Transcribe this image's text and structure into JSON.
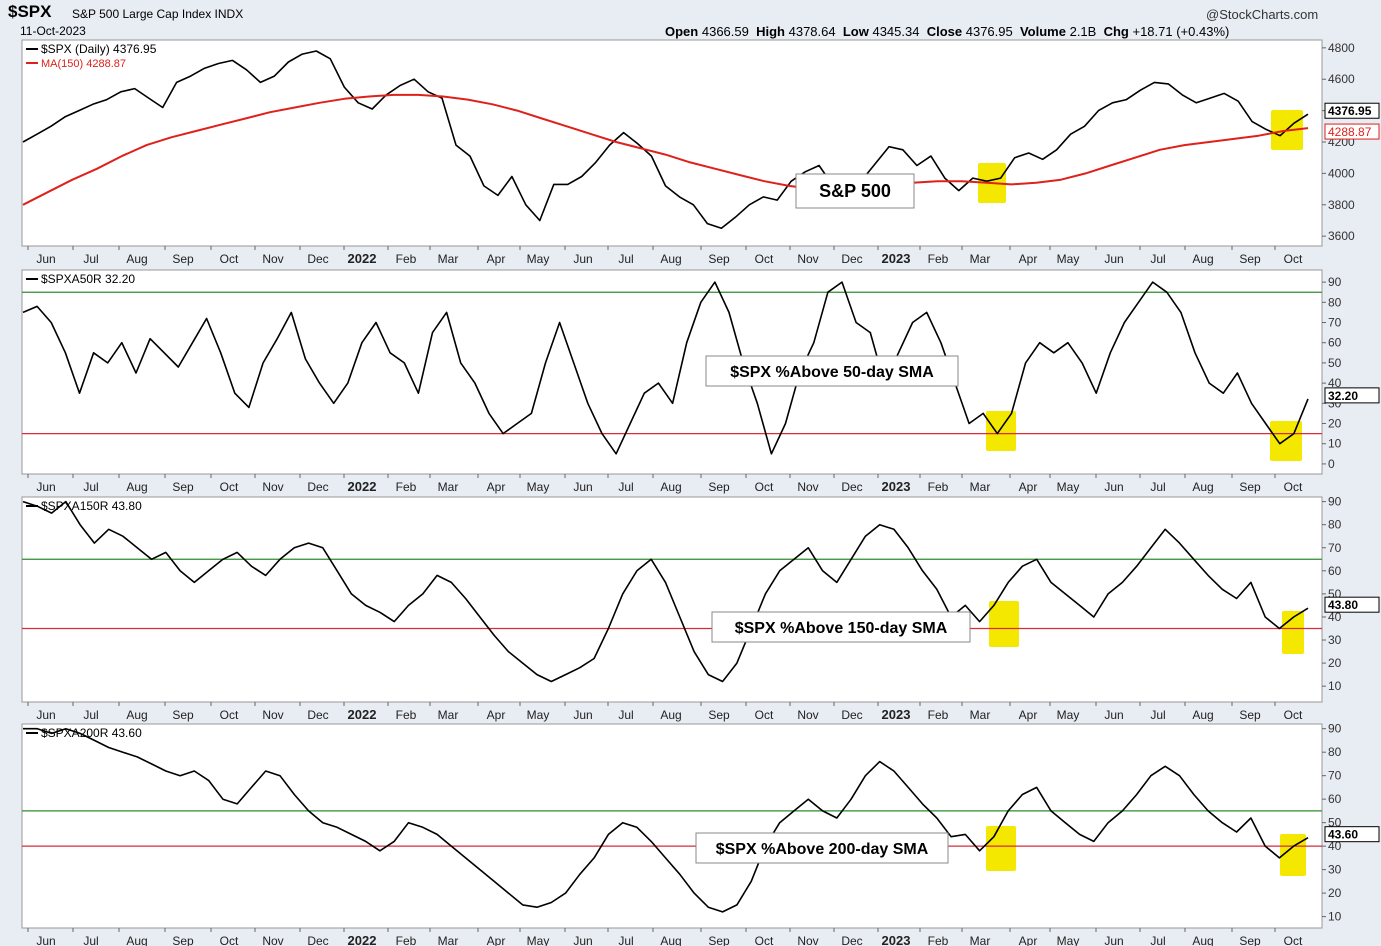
{
  "header": {
    "ticker": "$SPX",
    "name": "S&P 500 Large Cap Index INDX",
    "date": "11-Oct-2023",
    "brand": "@StockCharts.com",
    "open_label": "Open",
    "open": "4366.59",
    "high_label": "High",
    "high": "4378.64",
    "low_label": "Low",
    "low": "4345.34",
    "close_label": "Close",
    "close": "4376.95",
    "volume_label": "Volume",
    "volume": "2.1B",
    "chg_label": "Chg",
    "chg": "+18.71 (+0.43%)"
  },
  "colors": {
    "background": "#e8ecf3",
    "panel": "#ffffff",
    "price_line": "#000000",
    "ma_line": "#e0201b",
    "upper_line": "#2e8b2e",
    "lower_line": "#d92b3a",
    "highlight": "#f5e800"
  },
  "chart_data": [
    {
      "type": "line",
      "legend": [
        "$SPX (Daily) 4376.95",
        "MA(150) 4288.87"
      ],
      "annotation": "S&P 500",
      "x_ticks": [
        "Jun",
        "Jul",
        "Aug",
        "Sep",
        "Oct",
        "Nov",
        "Dec",
        "2022",
        "Feb",
        "Mar",
        "Apr",
        "May",
        "Jun",
        "Jul",
        "Aug",
        "Sep",
        "Oct",
        "Nov",
        "Dec",
        "2023",
        "Feb",
        "Mar",
        "Apr",
        "May",
        "Jun",
        "Jul",
        "Aug",
        "Sep",
        "Oct"
      ],
      "y_ticks": [
        3600,
        3800,
        4000,
        4200,
        4400,
        4600,
        4800
      ],
      "ylim": [
        3550,
        4850
      ],
      "last_value_tags": [
        "4376.95",
        "4288.87"
      ],
      "series": [
        {
          "name": "$SPX (Daily)",
          "values": [
            4200,
            4250,
            4300,
            4360,
            4400,
            4440,
            4470,
            4520,
            4540,
            4480,
            4420,
            4580,
            4620,
            4670,
            4700,
            4720,
            4660,
            4580,
            4620,
            4710,
            4760,
            4780,
            4730,
            4550,
            4450,
            4410,
            4500,
            4560,
            4600,
            4520,
            4480,
            4180,
            4110,
            3920,
            3860,
            3980,
            3800,
            3700,
            3930,
            3930,
            3980,
            4070,
            4180,
            4260,
            4190,
            4110,
            3920,
            3850,
            3800,
            3680,
            3650,
            3720,
            3800,
            3850,
            3830,
            3950,
            4010,
            4050,
            3920,
            3850,
            3950,
            4060,
            4170,
            4150,
            4050,
            4110,
            3970,
            3890,
            3970,
            3950,
            3970,
            4100,
            4130,
            4090,
            4150,
            4250,
            4300,
            4400,
            4450,
            4470,
            4530,
            4580,
            4570,
            4500,
            4450,
            4480,
            4510,
            4460,
            4330,
            4280,
            4240,
            4320,
            4376.95
          ]
        },
        {
          "name": "MA(150)",
          "values": [
            3800,
            3880,
            3960,
            4030,
            4110,
            4180,
            4230,
            4270,
            4310,
            4350,
            4390,
            4420,
            4450,
            4475,
            4490,
            4500,
            4500,
            4490,
            4470,
            4440,
            4400,
            4350,
            4300,
            4250,
            4200,
            4160,
            4120,
            4070,
            4030,
            3990,
            3950,
            3920,
            3900,
            3900,
            3910,
            3930,
            3940,
            3950,
            3950,
            3940,
            3930,
            3940,
            3960,
            4000,
            4050,
            4100,
            4150,
            4180,
            4200,
            4220,
            4240,
            4270,
            4288.87
          ]
        }
      ]
    },
    {
      "type": "line",
      "legend": [
        "$SPXA50R 32.20"
      ],
      "annotation": "$SPX %Above 50-day SMA",
      "x_ticks": [
        "Jun",
        "Jul",
        "Aug",
        "Sep",
        "Oct",
        "Nov",
        "Dec",
        "2022",
        "Feb",
        "Mar",
        "Apr",
        "May",
        "Jun",
        "Jul",
        "Aug",
        "Sep",
        "Oct",
        "Nov",
        "Dec",
        "2023",
        "Feb",
        "Mar",
        "Apr",
        "May",
        "Jun",
        "Jul",
        "Aug",
        "Sep",
        "Oct"
      ],
      "y_ticks": [
        0,
        10,
        20,
        30,
        40,
        50,
        60,
        70,
        80,
        90
      ],
      "ylim": [
        -4,
        96
      ],
      "reference_lines": [
        85,
        15
      ],
      "last_value_tags": [
        "32.20"
      ],
      "series": [
        {
          "name": "$SPXA50R",
          "values": [
            75,
            78,
            70,
            55,
            35,
            55,
            50,
            60,
            45,
            62,
            55,
            48,
            60,
            72,
            55,
            35,
            28,
            50,
            62,
            75,
            52,
            40,
            30,
            40,
            60,
            70,
            55,
            50,
            35,
            65,
            75,
            50,
            40,
            25,
            15,
            20,
            25,
            50,
            70,
            50,
            30,
            15,
            5,
            20,
            35,
            40,
            30,
            60,
            80,
            90,
            75,
            50,
            30,
            5,
            20,
            45,
            60,
            85,
            90,
            70,
            65,
            40,
            55,
            70,
            75,
            60,
            40,
            20,
            25,
            15,
            25,
            50,
            60,
            55,
            60,
            50,
            35,
            55,
            70,
            80,
            90,
            85,
            75,
            55,
            40,
            35,
            45,
            30,
            20,
            10,
            15,
            32.2
          ]
        }
      ]
    },
    {
      "type": "line",
      "legend": [
        "$SPXA150R 43.80"
      ],
      "annotation": "$SPX %Above 150-day SMA",
      "x_ticks": [
        "Jun",
        "Jul",
        "Aug",
        "Sep",
        "Oct",
        "Nov",
        "Dec",
        "2022",
        "Feb",
        "Mar",
        "Apr",
        "May",
        "Jun",
        "Jul",
        "Aug",
        "Sep",
        "Oct",
        "Nov",
        "Dec",
        "2023",
        "Feb",
        "Mar",
        "Apr",
        "May",
        "Jun",
        "Jul",
        "Aug",
        "Sep",
        "Oct"
      ],
      "y_ticks": [
        10,
        20,
        30,
        40,
        50,
        60,
        70,
        80,
        90
      ],
      "ylim": [
        4,
        92
      ],
      "reference_lines": [
        65,
        35
      ],
      "last_value_tags": [
        "43.80"
      ],
      "series": [
        {
          "name": "$SPXA150R",
          "values": [
            90,
            88,
            85,
            90,
            80,
            72,
            78,
            75,
            70,
            65,
            68,
            60,
            55,
            60,
            65,
            68,
            62,
            58,
            65,
            70,
            72,
            70,
            60,
            50,
            45,
            42,
            38,
            45,
            50,
            58,
            55,
            48,
            40,
            32,
            25,
            20,
            15,
            12,
            15,
            18,
            22,
            35,
            50,
            60,
            65,
            55,
            40,
            25,
            15,
            12,
            20,
            35,
            50,
            60,
            65,
            70,
            60,
            55,
            65,
            75,
            80,
            78,
            70,
            60,
            52,
            40,
            45,
            38,
            45,
            55,
            62,
            65,
            55,
            50,
            45,
            40,
            50,
            55,
            62,
            70,
            78,
            72,
            65,
            58,
            52,
            48,
            55,
            40,
            35,
            40,
            43.8
          ]
        }
      ]
    },
    {
      "type": "line",
      "legend": [
        "$SPXA200R 43.60"
      ],
      "annotation": "$SPX %Above 200-day SMA",
      "x_ticks": [
        "Jun",
        "Jul",
        "Aug",
        "Sep",
        "Oct",
        "Nov",
        "Dec",
        "2022",
        "Feb",
        "Mar",
        "Apr",
        "May",
        "Jun",
        "Jul",
        "Aug",
        "Sep",
        "Oct",
        "Nov",
        "Dec",
        "2023",
        "Feb",
        "Mar",
        "Apr",
        "May",
        "Jun",
        "Jul",
        "Aug",
        "Sep",
        "Oct"
      ],
      "y_ticks": [
        10,
        20,
        30,
        40,
        50,
        60,
        70,
        80,
        90
      ],
      "ylim": [
        6,
        92
      ],
      "reference_lines": [
        55,
        40
      ],
      "last_value_tags": [
        "43.60"
      ],
      "series": [
        {
          "name": "$SPXA200R",
          "values": [
            90,
            90,
            88,
            90,
            88,
            85,
            82,
            80,
            78,
            75,
            72,
            70,
            72,
            68,
            60,
            58,
            65,
            72,
            70,
            62,
            55,
            50,
            48,
            45,
            42,
            38,
            42,
            50,
            48,
            45,
            40,
            35,
            30,
            25,
            20,
            15,
            14,
            16,
            20,
            28,
            35,
            45,
            50,
            48,
            42,
            35,
            28,
            20,
            14,
            12,
            15,
            25,
            40,
            50,
            55,
            60,
            55,
            52,
            60,
            70,
            76,
            72,
            65,
            58,
            52,
            44,
            45,
            38,
            44,
            55,
            62,
            65,
            55,
            50,
            45,
            42,
            50,
            55,
            62,
            70,
            74,
            70,
            62,
            55,
            50,
            46,
            52,
            40,
            35,
            40,
            43.6
          ]
        }
      ]
    }
  ]
}
